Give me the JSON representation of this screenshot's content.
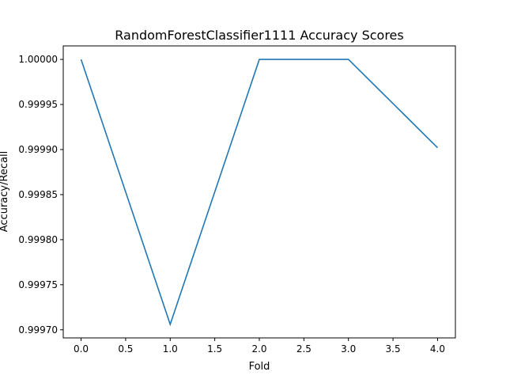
{
  "chart_data": {
    "type": "line",
    "title": "RandomForestClassifier1111 Accuracy Scores",
    "xlabel": "Fold",
    "ylabel": "Accuracy/Recall",
    "x": [
      0,
      1,
      2,
      3,
      4
    ],
    "series": [
      {
        "values": [
          1.0,
          0.999706,
          1.0,
          1.0,
          0.999902
        ],
        "color": "#1f77b4"
      }
    ],
    "xlim": [
      -0.2,
      4.2
    ],
    "ylim": [
      0.999691,
      1.000015
    ],
    "xticks": [
      0.0,
      0.5,
      1.0,
      1.5,
      2.0,
      2.5,
      3.0,
      3.5,
      4.0
    ],
    "xtick_labels": [
      "0.0",
      "0.5",
      "1.0",
      "1.5",
      "2.0",
      "2.5",
      "3.0",
      "3.5",
      "4.0"
    ],
    "yticks": [
      0.9997,
      0.99975,
      0.9998,
      0.99985,
      0.9999,
      0.99995,
      1.0
    ],
    "ytick_labels": [
      "0.99970",
      "0.99975",
      "0.99980",
      "0.99985",
      "0.99990",
      "0.99995",
      "1.00000"
    ],
    "grid": false,
    "legend": "none"
  }
}
